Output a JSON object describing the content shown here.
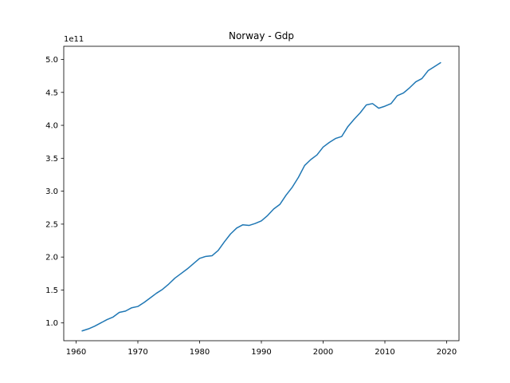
{
  "chart_data": {
    "type": "line",
    "title": "Norway - Gdp",
    "xlabel": "",
    "ylabel": "",
    "y_offset_label": "1e11",
    "xlim": [
      1958,
      2022
    ],
    "ylim": [
      0.73,
      5.2
    ],
    "x_ticks": [
      1960,
      1970,
      1980,
      1990,
      2000,
      2010,
      2020
    ],
    "y_ticks": [
      1.0,
      1.5,
      2.0,
      2.5,
      3.0,
      3.5,
      4.0,
      4.5,
      5.0
    ],
    "y_tick_labels": [
      "1.0",
      "1.5",
      "2.0",
      "2.5",
      "3.0",
      "3.5",
      "4.0",
      "4.5",
      "5.0"
    ],
    "grid": false,
    "color": "#1f77b4",
    "series": [
      {
        "x": [
          1961,
          1962,
          1963,
          1964,
          1965,
          1966,
          1967,
          1968,
          1969,
          1970,
          1971,
          1972,
          1973,
          1974,
          1975,
          1976,
          1977,
          1978,
          1979,
          1980,
          1981,
          1982,
          1983,
          1984,
          1985,
          1986,
          1987,
          1988,
          1989,
          1990,
          1991,
          1992,
          1993,
          1994,
          1995,
          1996,
          1997,
          1998,
          1999,
          2000,
          2001,
          2002,
          2003,
          2004,
          2005,
          2006,
          2007,
          2008,
          2009,
          2010,
          2011,
          2012,
          2013,
          2014,
          2015,
          2016,
          2017,
          2018,
          2019
        ],
        "values": [
          0.88,
          0.91,
          0.95,
          1.0,
          1.05,
          1.09,
          1.16,
          1.18,
          1.23,
          1.25,
          1.31,
          1.38,
          1.45,
          1.51,
          1.59,
          1.68,
          1.75,
          1.82,
          1.9,
          1.98,
          2.01,
          2.02,
          2.1,
          2.23,
          2.35,
          2.44,
          2.49,
          2.48,
          2.51,
          2.55,
          2.63,
          2.73,
          2.8,
          2.94,
          3.06,
          3.21,
          3.39,
          3.48,
          3.55,
          3.67,
          3.74,
          3.8,
          3.83,
          3.98,
          4.09,
          4.19,
          4.31,
          4.33,
          4.26,
          4.29,
          4.33,
          4.45,
          4.49,
          4.57,
          4.66,
          4.71,
          4.83,
          4.89,
          4.95
        ]
      }
    ]
  }
}
